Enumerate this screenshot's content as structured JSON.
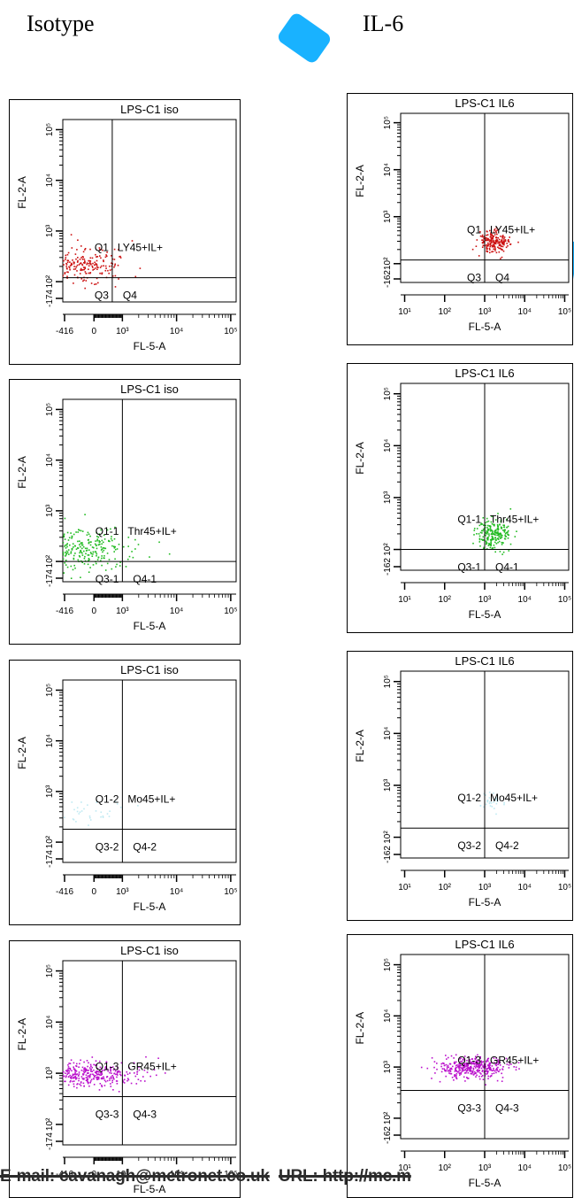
{
  "column_headers": {
    "left": "Isotype",
    "right": "IL-6"
  },
  "footer": {
    "email": "E-mail: cavanagh@metronet.co.uk",
    "url": "URL: http://mc.m"
  },
  "colors": {
    "red": "#cc1111",
    "green": "#22bb22",
    "cyan": "#bfe9f2",
    "magenta": "#bb11cc",
    "watermark": "#00aaff"
  },
  "chart_data": [
    {
      "type": "scatter",
      "title": "LPS-C1 iso",
      "xlabel": "FL-5-A",
      "ylabel": "FL-2-A",
      "x_scale": "logicle",
      "y_scale": "logicle",
      "x_ticks": [
        "-416",
        "0",
        "10³",
        "10⁴",
        "10⁵"
      ],
      "y_ticks": [
        "-174",
        "10²",
        "10³",
        "10⁴",
        "10⁵"
      ],
      "gate_x": 650,
      "gate_y": 120,
      "quadrants": [
        "Q1",
        "LY45+IL+",
        "Q3",
        "Q4"
      ],
      "color": "#cc1111",
      "population": {
        "x_center": 150,
        "x_spread": 0.45,
        "y_center": 220,
        "y_spread": 0.18,
        "count": 260
      }
    },
    {
      "type": "scatter",
      "title": "LPS-C1 IL6",
      "xlabel": "FL-5-A",
      "ylabel": "FL-2-A",
      "x_scale": "logicle",
      "y_scale": "logicle",
      "x_ticks": [
        "10¹",
        "10²",
        "10³",
        "10⁴",
        "10⁵"
      ],
      "y_ticks": [
        "-162",
        "10²",
        "10³",
        "10⁴",
        "10⁵"
      ],
      "gate_x": 1000,
      "gate_y": 120,
      "quadrants": [
        "Q1",
        "LY45+IL+",
        "Q3",
        "Q4"
      ],
      "color": "#cc1111",
      "population": {
        "x_center": 1700,
        "x_spread": 0.18,
        "y_center": 300,
        "y_spread": 0.12,
        "count": 200
      }
    },
    {
      "type": "scatter",
      "title": "LPS-C1 iso",
      "xlabel": "FL-5-A",
      "ylabel": "FL-2-A",
      "x_scale": "logicle",
      "y_scale": "logicle",
      "x_ticks": [
        "-416",
        "0",
        "10³",
        "10⁴",
        "10⁵"
      ],
      "y_ticks": [
        "-174",
        "10²",
        "10³",
        "10⁴",
        "10⁵"
      ],
      "gate_x": 1000,
      "gate_y": 100,
      "quadrants": [
        "Q1-1",
        "Thr45+IL+",
        "Q3-1",
        "Q4-1"
      ],
      "color": "#22bb22",
      "population": {
        "x_center": 150,
        "x_spread": 0.5,
        "y_center": 180,
        "y_spread": 0.2,
        "count": 300
      }
    },
    {
      "type": "scatter",
      "title": "LPS-C1 IL6",
      "xlabel": "FL-5-A",
      "ylabel": "FL-2-A",
      "x_scale": "logicle",
      "y_scale": "logicle",
      "x_ticks": [
        "10¹",
        "10²",
        "10³",
        "10⁴",
        "10⁵"
      ],
      "y_ticks": [
        "-162",
        "10²",
        "10³",
        "10⁴",
        "10⁵"
      ],
      "gate_x": 1000,
      "gate_y": 100,
      "quadrants": [
        "Q1-1",
        "Thr45+IL+",
        "Q3-1",
        "Q4-1"
      ],
      "color": "#22bb22",
      "population": {
        "x_center": 1600,
        "x_spread": 0.2,
        "y_center": 200,
        "y_spread": 0.14,
        "count": 220
      }
    },
    {
      "type": "scatter",
      "title": "LPS-C1 iso",
      "xlabel": "FL-5-A",
      "ylabel": "FL-2-A",
      "x_scale": "logicle",
      "y_scale": "logicle",
      "x_ticks": [
        "-416",
        "0",
        "10³",
        "10⁴",
        "10⁵"
      ],
      "y_ticks": [
        "-174",
        "10²",
        "10³",
        "10⁴",
        "10⁵"
      ],
      "gate_x": 1000,
      "gate_y": 180,
      "quadrants": [
        "Q1-2",
        "Mo45+IL+",
        "Q3-2",
        "Q4-2"
      ],
      "color": "#bfe9f2",
      "population": {
        "x_center": 120,
        "x_spread": 0.4,
        "y_center": 420,
        "y_spread": 0.12,
        "count": 40
      }
    },
    {
      "type": "scatter",
      "title": "LPS-C1 IL6",
      "xlabel": "FL-5-A",
      "ylabel": "FL-2-A",
      "x_scale": "logicle",
      "y_scale": "logicle",
      "x_ticks": [
        "10¹",
        "10²",
        "10³",
        "10⁴",
        "10⁵"
      ],
      "y_ticks": [
        "-162",
        "10²",
        "10³",
        "10⁴",
        "10⁵"
      ],
      "gate_x": 1000,
      "gate_y": 150,
      "quadrants": [
        "Q1-2",
        "Mo45+IL+",
        "Q3-2",
        "Q4-2"
      ],
      "color": "#bfe9f2",
      "population": {
        "x_center": 1500,
        "x_spread": 0.15,
        "y_center": 500,
        "y_spread": 0.1,
        "count": 30
      }
    },
    {
      "type": "scatter",
      "title": "LPS-C1 iso",
      "xlabel": "FL-5-A",
      "ylabel": "FL-2-A",
      "x_scale": "logicle",
      "y_scale": "logicle",
      "x_ticks": [
        "-416",
        "0",
        "10³",
        "10⁴",
        "10⁵"
      ],
      "y_ticks": [
        "-174",
        "10²",
        "10³",
        "10⁴",
        "10⁵"
      ],
      "gate_x": 1000,
      "gate_y": 350,
      "quadrants": [
        "Q1-3",
        "GR45+IL+",
        "Q3-3",
        "Q4-3"
      ],
      "color": "#bb11cc",
      "population": {
        "x_center": 200,
        "x_spread": 0.5,
        "y_center": 1000,
        "y_spread": 0.12,
        "count": 380
      }
    },
    {
      "type": "scatter",
      "title": "LPS-C1 IL6",
      "xlabel": "FL-5-A",
      "ylabel": "FL-2-A",
      "x_scale": "logicle",
      "y_scale": "logicle",
      "x_ticks": [
        "10¹",
        "10²",
        "10³",
        "10⁴",
        "10⁵"
      ],
      "y_ticks": [
        "-162",
        "10²",
        "10³",
        "10⁴",
        "10⁵"
      ],
      "gate_x": 1000,
      "gate_y": 350,
      "quadrants": [
        "Q1-3",
        "GR45+IL+",
        "Q3-3",
        "Q4-3"
      ],
      "color": "#bb11cc",
      "population": {
        "x_center": 500,
        "x_spread": 0.45,
        "y_center": 1000,
        "y_spread": 0.1,
        "count": 380
      }
    }
  ]
}
